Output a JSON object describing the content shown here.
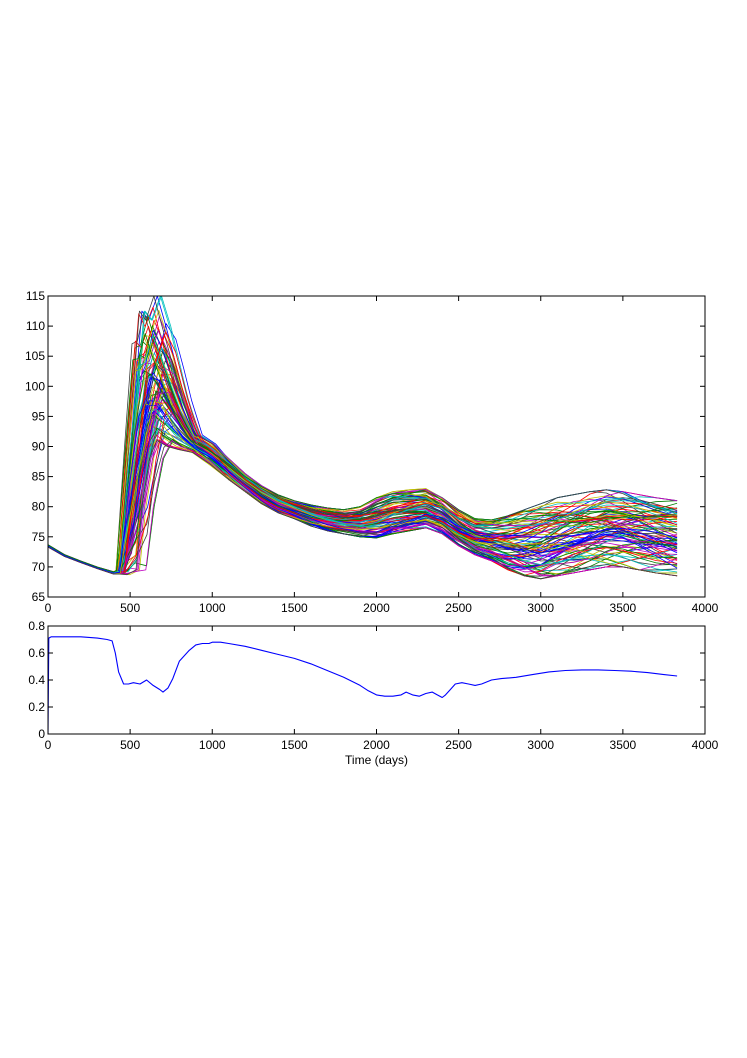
{
  "chart_data": [
    {
      "type": "line",
      "title": "",
      "xlabel": "",
      "ylabel": "",
      "xlim": [
        0,
        4000
      ],
      "ylim": [
        65,
        115
      ],
      "xticks": [
        "0",
        "500",
        "1000",
        "1500",
        "2000",
        "2500",
        "3000",
        "3500",
        "4000"
      ],
      "yticks": [
        "65",
        "70",
        "75",
        "80",
        "85",
        "90",
        "95",
        "100",
        "105",
        "110",
        "115"
      ],
      "grid": false,
      "legend": "none",
      "description_series": "ensemble of approximately 100 realizations sharing common shape",
      "ensemble": {
        "count": 100,
        "x": [
          0,
          100,
          200,
          300,
          400,
          440,
          500,
          560,
          600,
          650,
          700,
          760,
          820,
          900,
          1000,
          1100,
          1200,
          1300,
          1400,
          1500,
          1600,
          1700,
          1800,
          1900,
          2000,
          2100,
          2200,
          2300,
          2400,
          2500,
          2600,
          2700,
          2800,
          2900,
          3000,
          3100,
          3200,
          3300,
          3400,
          3500,
          3600,
          3700,
          3830
        ],
        "envelope_min": [
          73,
          71.5,
          70.5,
          69.5,
          68.5,
          68.3,
          68.7,
          69.5,
          80,
          88,
          91,
          90,
          89.5,
          89,
          87,
          84.5,
          82.5,
          80.5,
          79,
          78,
          76.8,
          76,
          75.5,
          75,
          74.8,
          75.5,
          76,
          76.5,
          75.5,
          73.5,
          72,
          71,
          69.5,
          68.5,
          68,
          68.5,
          69,
          69.5,
          70,
          70,
          69.5,
          69,
          68.5
        ],
        "envelope_max": [
          74,
          72.3,
          71.2,
          70.2,
          69.5,
          70,
          92,
          112.5,
          111,
          115,
          110,
          104,
          98,
          92,
          90.5,
          88,
          85.5,
          83.5,
          82,
          81,
          80.3,
          79.8,
          79.5,
          80,
          81.5,
          82.5,
          82.8,
          83,
          81.5,
          79.5,
          78,
          77.8,
          78.5,
          79.5,
          80.5,
          81.5,
          82,
          82.5,
          82.8,
          82.5,
          82,
          81.5,
          81
        ]
      },
      "colors": [
        "#0000ff",
        "#008000",
        "#ff0000",
        "#00bfbf",
        "#bf00bf",
        "#bfbf00",
        "#404040"
      ]
    },
    {
      "type": "line",
      "title": "",
      "xlabel": "Time (days)",
      "ylabel": "",
      "xlim": [
        0,
        4000
      ],
      "ylim": [
        0,
        0.8
      ],
      "xticks": [
        "0",
        "500",
        "1000",
        "1500",
        "2000",
        "2500",
        "3000",
        "3500",
        "4000"
      ],
      "yticks": [
        "0",
        "0.2",
        "0.4",
        "0.6",
        "0.8"
      ],
      "grid": false,
      "legend": "none",
      "series": [
        {
          "color": "#0000ff",
          "x": [
            0,
            5,
            20,
            100,
            200,
            300,
            360,
            390,
            410,
            430,
            460,
            490,
            520,
            560,
            600,
            640,
            680,
            700,
            730,
            760,
            800,
            860,
            900,
            940,
            980,
            1000,
            1050,
            1100,
            1200,
            1300,
            1400,
            1500,
            1600,
            1700,
            1800,
            1900,
            1950,
            2000,
            2050,
            2100,
            2150,
            2180,
            2220,
            2260,
            2300,
            2340,
            2370,
            2400,
            2420,
            2450,
            2480,
            2520,
            2560,
            2600,
            2640,
            2700,
            2760,
            2850,
            2950,
            3050,
            3150,
            3250,
            3350,
            3450,
            3550,
            3650,
            3750,
            3830
          ],
          "y": [
            0,
            0.71,
            0.72,
            0.72,
            0.72,
            0.71,
            0.7,
            0.69,
            0.6,
            0.46,
            0.37,
            0.37,
            0.38,
            0.37,
            0.4,
            0.36,
            0.33,
            0.31,
            0.34,
            0.41,
            0.54,
            0.62,
            0.66,
            0.67,
            0.67,
            0.68,
            0.68,
            0.67,
            0.65,
            0.62,
            0.59,
            0.56,
            0.52,
            0.47,
            0.42,
            0.36,
            0.32,
            0.29,
            0.28,
            0.28,
            0.29,
            0.31,
            0.29,
            0.28,
            0.3,
            0.31,
            0.29,
            0.27,
            0.29,
            0.33,
            0.37,
            0.38,
            0.37,
            0.36,
            0.37,
            0.4,
            0.41,
            0.42,
            0.44,
            0.46,
            0.47,
            0.475,
            0.475,
            0.47,
            0.465,
            0.455,
            0.44,
            0.43
          ]
        }
      ]
    }
  ]
}
